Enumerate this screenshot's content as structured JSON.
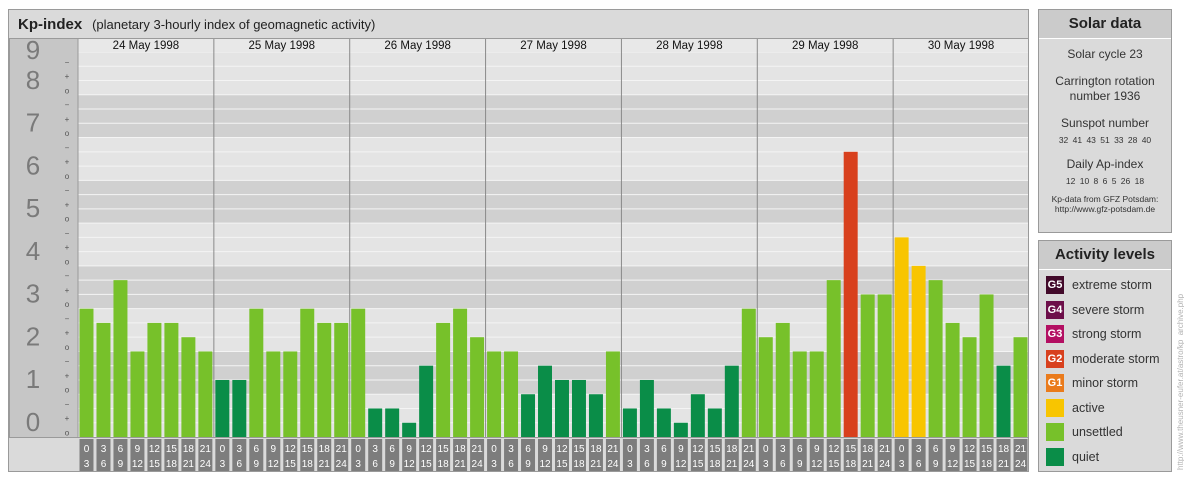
{
  "header": {
    "title": "Kp-index",
    "subtitle": "(planetary 3-hourly index of geomagnetic activity)"
  },
  "chart_data": {
    "type": "bar",
    "ylim": [
      0,
      9
    ],
    "y_ticks": [
      "0",
      "1",
      "2",
      "3",
      "4",
      "5",
      "6",
      "7",
      "8",
      "9"
    ],
    "minor_tick_labels": [
      "o",
      "+",
      "−"
    ],
    "days": [
      "24 May 1998",
      "25 May 1998",
      "26 May 1998",
      "27 May 1998",
      "28 May 1998",
      "29 May 1998",
      "30 May 1998"
    ],
    "interval_labels": [
      [
        "0",
        "3"
      ],
      [
        "3",
        "6"
      ],
      [
        "6",
        "9"
      ],
      [
        "9",
        "12"
      ],
      [
        "12",
        "15"
      ],
      [
        "15",
        "18"
      ],
      [
        "18",
        "21"
      ],
      [
        "21",
        "24"
      ]
    ],
    "values": [
      [
        3.0,
        2.667,
        3.667,
        2.0,
        2.667,
        2.667,
        2.333,
        2.0
      ],
      [
        1.333,
        1.333,
        3.0,
        2.0,
        2.0,
        3.0,
        2.667,
        2.667
      ],
      [
        3.0,
        0.667,
        0.667,
        0.333,
        1.667,
        2.667,
        3.0,
        2.333
      ],
      [
        2.0,
        2.0,
        1.0,
        1.667,
        1.333,
        1.333,
        1.0,
        2.0
      ],
      [
        0.667,
        1.333,
        0.667,
        0.333,
        1.0,
        0.667,
        1.667,
        3.0
      ],
      [
        2.333,
        2.667,
        2.0,
        2.0,
        3.667,
        6.667,
        3.333,
        3.333
      ],
      [
        4.667,
        4.0,
        3.667,
        2.667,
        2.333,
        3.333,
        1.667,
        2.333
      ]
    ],
    "level_colors": {
      "quiet": "#0a8d48",
      "unsettled": "#77c12a",
      "active": "#f8c500",
      "minor_storm": "#ea7b1c",
      "moderate_storm": "#d8401d",
      "strong_storm": "#b30f62",
      "severe_storm": "#6d0f4a",
      "extreme_storm": "#420a2a"
    }
  },
  "solar": {
    "title": "Solar data",
    "cycle": "Solar cycle 23",
    "carrington_line1": "Carrington rotation",
    "carrington_line2": "number 1936",
    "sunspot_label": "Sunspot number",
    "sunspot_values": "32  41  43  51  33  28  40",
    "ap_label": "Daily Ap-index",
    "ap_values": "12  10  8  6  5  26  18",
    "credit_line1": "Kp-data from GFZ Potsdam:",
    "credit_line2": "http://www.gfz-potsdam.de"
  },
  "legend": {
    "title": "Activity levels",
    "items": [
      {
        "code": "G5",
        "label": "extreme storm",
        "color": "#420a2a"
      },
      {
        "code": "G4",
        "label": "severe storm",
        "color": "#6d0f4a"
      },
      {
        "code": "G3",
        "label": "strong storm",
        "color": "#b30f62"
      },
      {
        "code": "G2",
        "label": "moderate storm",
        "color": "#d8401d"
      },
      {
        "code": "G1",
        "label": "minor storm",
        "color": "#ea7b1c"
      },
      {
        "code": "",
        "label": "active",
        "color": "#f8c500"
      },
      {
        "code": "",
        "label": "unsettled",
        "color": "#77c12a"
      },
      {
        "code": "",
        "label": "quiet",
        "color": "#0a8d48"
      }
    ]
  },
  "watermark": "http://www.theusner-eufer.at/astro/kp_archive.php"
}
